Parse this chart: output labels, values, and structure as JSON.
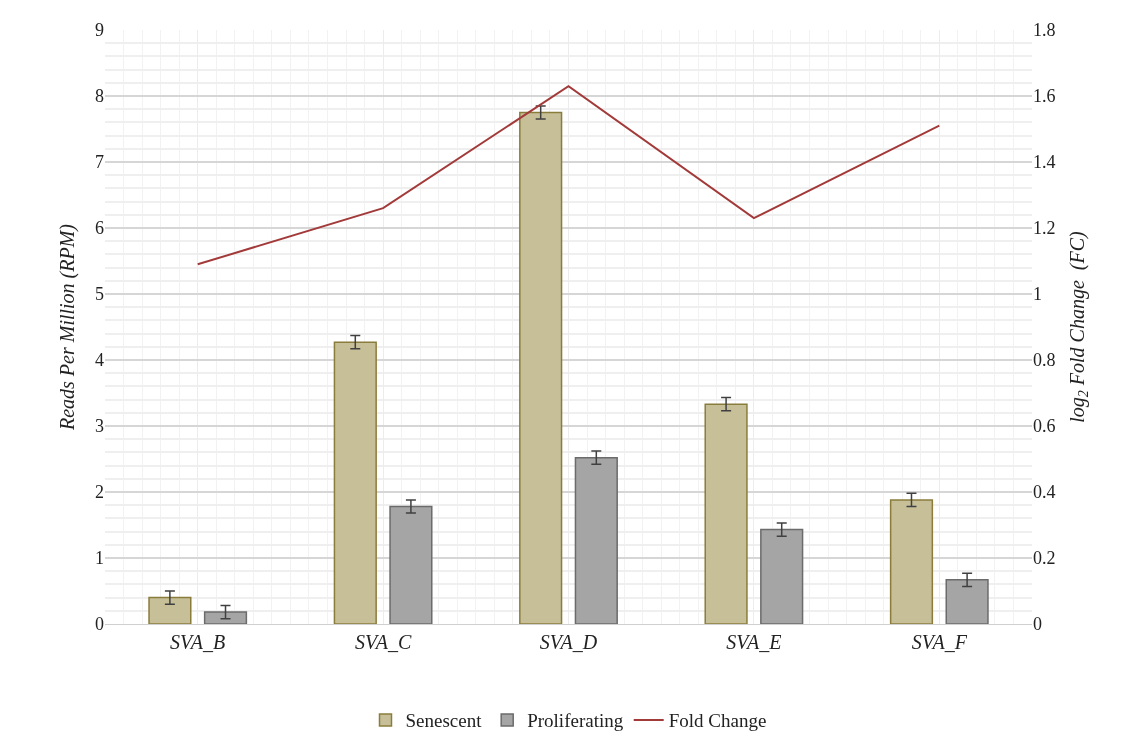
{
  "chart_data": {
    "type": "bar",
    "categories": [
      "SVA_B",
      "SVA_C",
      "SVA_D",
      "SVA_E",
      "SVA_F"
    ],
    "ylabel": "Reads Per Million (RPM)",
    "y2label": "log$_{2}$ Fold Change  (FC)",
    "series": [
      {
        "name": "Senescent",
        "color": "#c6bf98",
        "values": [
          0.4,
          4.27,
          7.75,
          3.33,
          1.88
        ],
        "errors": [
          0.1,
          0.1,
          0.1,
          0.1,
          0.1
        ]
      },
      {
        "name": "Proliferating",
        "color": "#a5a5a5",
        "values": [
          0.18,
          1.78,
          2.52,
          1.43,
          0.67
        ],
        "errors": [
          0.1,
          0.1,
          0.1,
          0.1,
          0.1
        ]
      },
      {
        "name": "Fold Change",
        "type": "line",
        "axis": "y2",
        "color": "#a33a3a",
        "values": [
          1.09,
          1.26,
          1.63,
          1.23,
          1.51
        ]
      }
    ],
    "ylim": [
      0,
      9
    ],
    "yticks": [
      0,
      1,
      2,
      3,
      4,
      5,
      6,
      7,
      8,
      9
    ],
    "y2lim": [
      0,
      1.8
    ],
    "y2ticks": [
      0,
      0.2,
      0.4,
      0.6,
      0.8,
      1,
      1.2,
      1.4,
      1.6,
      1.8
    ],
    "grid": true,
    "legend": "bottom"
  }
}
